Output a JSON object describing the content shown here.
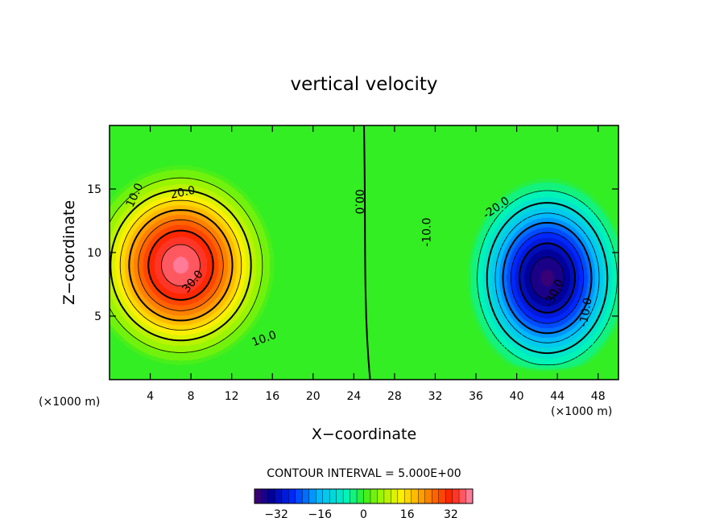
{
  "chart_data": {
    "type": "contour",
    "title": "vertical velocity",
    "xlabel": "X−coordinate",
    "ylabel": "Z−coordinate",
    "x_unit_left": "(×1000 m)",
    "x_unit_right": "(×1000 m)",
    "xlim": [
      0,
      50
    ],
    "ylim": [
      0,
      20
    ],
    "x_ticks": [
      4,
      8,
      12,
      16,
      20,
      24,
      28,
      32,
      36,
      40,
      44,
      48
    ],
    "y_ticks": [
      5,
      10,
      15
    ],
    "contour_interval_text": "CONTOUR INTERVAL = 5.000E+00",
    "contour_interval": 5.0,
    "field": {
      "updraft": {
        "center": [
          7.0,
          9.0
        ],
        "max": 38,
        "rx": 10.5,
        "rz": 9.0
      },
      "downdraft": {
        "center": [
          43.0,
          8.0
        ],
        "min": -38,
        "rx": 9.0,
        "rz": 9.0
      }
    },
    "contour_labels": [
      {
        "text": "10.0",
        "x": 2.5,
        "y": 14.5,
        "angle": -65
      },
      {
        "text": "20.0",
        "x": 7.2,
        "y": 14.7,
        "angle": -12
      },
      {
        "text": "30.0",
        "x": 8.2,
        "y": 7.7,
        "angle": -50
      },
      {
        "text": "10.0",
        "x": 15.2,
        "y": 3.2,
        "angle": -20
      },
      {
        "text": "00.0",
        "x": 24.5,
        "y": 14.0,
        "angle": 90
      },
      {
        "text": "-10.0",
        "x": 31.2,
        "y": 11.6,
        "angle": -90
      },
      {
        "text": "-20.0",
        "x": 38.0,
        "y": 13.5,
        "angle": -35
      },
      {
        "text": "-30.0",
        "x": 43.7,
        "y": 6.8,
        "angle": -65
      },
      {
        "text": "-10.0",
        "x": 46.8,
        "y": 5.3,
        "angle": -80
      }
    ],
    "colorbar": {
      "range": [
        -40,
        40
      ],
      "ticks": [
        -32,
        -16,
        0,
        16,
        32
      ],
      "tick_labels": [
        "−32",
        "−16",
        "0",
        "16",
        "32"
      ]
    }
  },
  "colors": {
    "background": "#ffffff",
    "zero_field": "#33ee22",
    "contour_line": "#000000"
  }
}
